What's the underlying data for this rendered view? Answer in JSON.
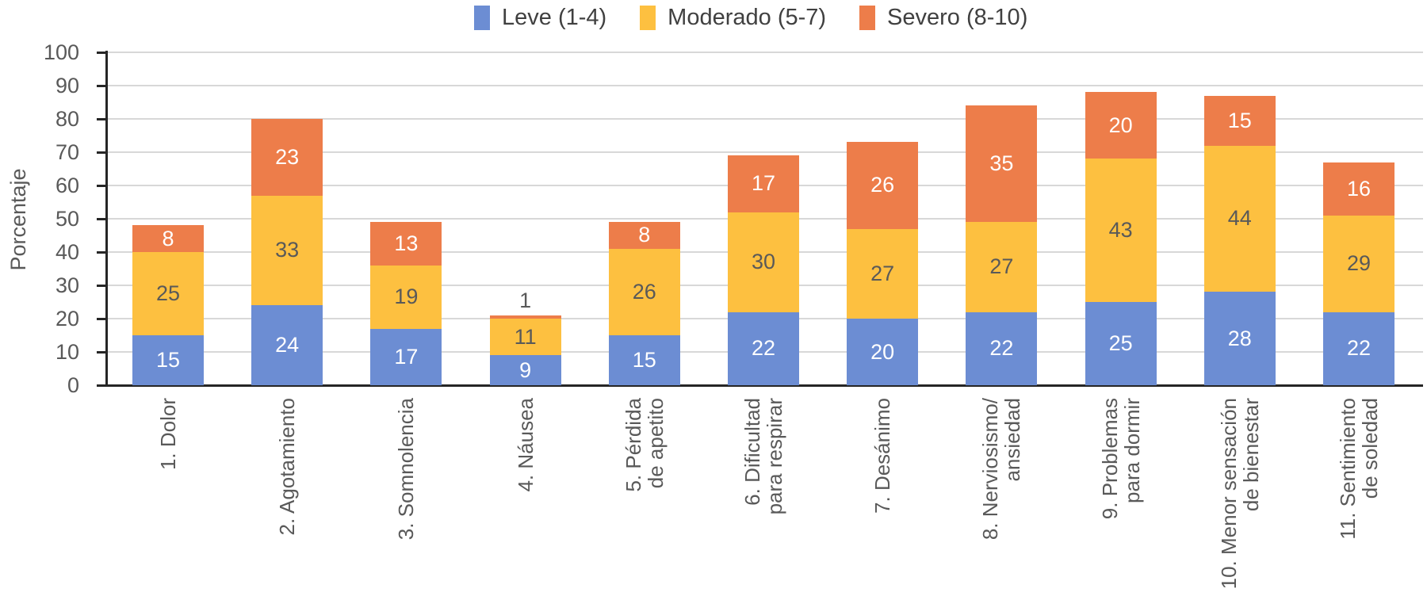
{
  "chart_data": {
    "type": "bar",
    "stacked": true,
    "orientation": "vertical",
    "title": "",
    "xlabel": "",
    "ylabel": "Porcentaje",
    "ylim": [
      0,
      100
    ],
    "ytick_step": 10,
    "yticks": [
      0,
      10,
      20,
      30,
      40,
      50,
      60,
      70,
      80,
      90,
      100
    ],
    "grid": true,
    "legend_position": "top",
    "categories": [
      "1. Dolor",
      "2. Agotamiento",
      "3. Somnolencia",
      "4. Náusea",
      "5. Pérdida\nde apetito",
      "6. Dificultad\npara respirar",
      "7. Desánimo",
      "8. Nerviosismo/\nansiedad",
      "9. Problemas\npara dormir",
      "10. Menor sensación\nde bienestar",
      "11. Sentimiento\nde soledad"
    ],
    "series": [
      {
        "name": "Leve (1-4)",
        "color": "#6c8dd3",
        "label_color": "#ffffff",
        "values": [
          15,
          24,
          17,
          9,
          15,
          22,
          20,
          22,
          25,
          28,
          22
        ]
      },
      {
        "name": "Moderado (5-7)",
        "color": "#fdc040",
        "label_color": "#595959",
        "values": [
          25,
          33,
          19,
          11,
          26,
          30,
          27,
          27,
          43,
          44,
          29
        ]
      },
      {
        "name": "Severo (8-10)",
        "color": "#ed7d4a",
        "label_color": "#ffffff",
        "values": [
          8,
          23,
          13,
          1,
          8,
          17,
          26,
          35,
          20,
          15,
          16
        ]
      }
    ],
    "totals": [
      48,
      80,
      49,
      21,
      49,
      69,
      73,
      84,
      88,
      87,
      67
    ]
  },
  "colors": {
    "axis": "#262626",
    "gridline": "#d8d8d8",
    "tick_text": "#595959",
    "legend_text": "#404040",
    "background": "#ffffff"
  }
}
